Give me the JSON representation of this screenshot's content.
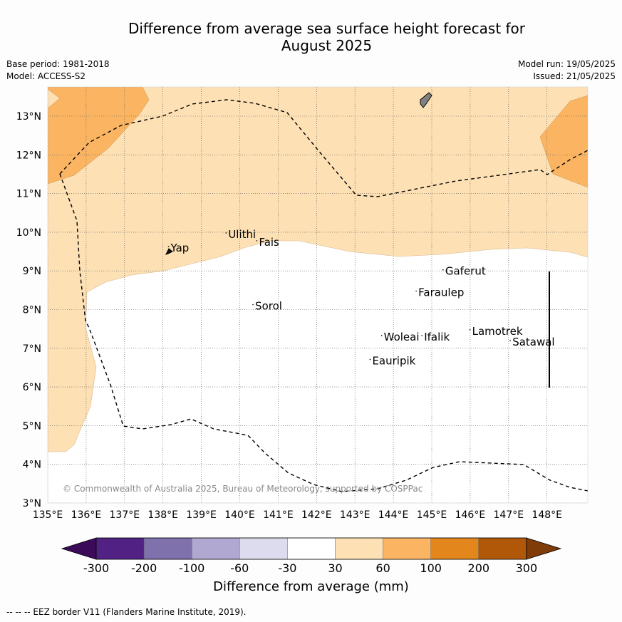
{
  "title_line1": "Difference from average sea surface height forecast for",
  "title_line2": "August 2025",
  "meta": {
    "base_period": "Base period: 1981-2018",
    "model": "Model: ACCESS-S2",
    "model_run": "Model run: 19/05/2025",
    "issued": "Issued: 21/05/2025"
  },
  "map": {
    "lon_ticks": [
      "135°E",
      "136°E",
      "137°E",
      "138°E",
      "139°E",
      "140°E",
      "141°E",
      "142°E",
      "143°E",
      "144°E",
      "145°E",
      "146°E",
      "147°E",
      "148°E"
    ],
    "lat_ticks": [
      "3°N",
      "4°N",
      "5°N",
      "6°N",
      "7°N",
      "8°N",
      "9°N",
      "10°N",
      "11°N",
      "12°N",
      "13°N"
    ],
    "places": [
      {
        "name": "Yap",
        "lon": 138.2,
        "lat": 9.5
      },
      {
        "name": "Ulithi",
        "lon": 139.7,
        "lat": 9.85
      },
      {
        "name": "Fais",
        "lon": 140.5,
        "lat": 9.65
      },
      {
        "name": "Sorol",
        "lon": 140.4,
        "lat": 8.0
      },
      {
        "name": "Gaferut",
        "lon": 145.35,
        "lat": 8.9
      },
      {
        "name": "Faraulep",
        "lon": 144.65,
        "lat": 8.35
      },
      {
        "name": "Woleai",
        "lon": 143.75,
        "lat": 7.2
      },
      {
        "name": "Ifalik",
        "lon": 144.8,
        "lat": 7.2
      },
      {
        "name": "Lamotrek",
        "lon": 146.05,
        "lat": 7.35
      },
      {
        "name": "Satawal",
        "lon": 147.1,
        "lat": 7.07
      },
      {
        "name": "Eauripik",
        "lon": 143.45,
        "lat": 6.58
      }
    ],
    "copyright": "© Commonwealth of Australia 2025, Bureau of Meteorology, supported by COSPPac"
  },
  "colorbar": {
    "colors": [
      "#3b0b5a",
      "#512283",
      "#7f71ac",
      "#b1a8d2",
      "#dcdcee",
      "#ffffff",
      "#fde0b4",
      "#fbb562",
      "#e3861b",
      "#b15808",
      "#7f3b08"
    ],
    "labels": [
      "-300",
      "-200",
      "-100",
      "-60",
      "-30",
      "30",
      "60",
      "100",
      "200",
      "300"
    ],
    "title": "Difference from average (mm)"
  },
  "footnote": "-- -- -- EEZ border V11 (Flanders Marine Institute, 2019).",
  "legend_colors": {
    "light_orange": "#fde0b4",
    "mid_orange": "#fbb562",
    "land": "#808080"
  }
}
